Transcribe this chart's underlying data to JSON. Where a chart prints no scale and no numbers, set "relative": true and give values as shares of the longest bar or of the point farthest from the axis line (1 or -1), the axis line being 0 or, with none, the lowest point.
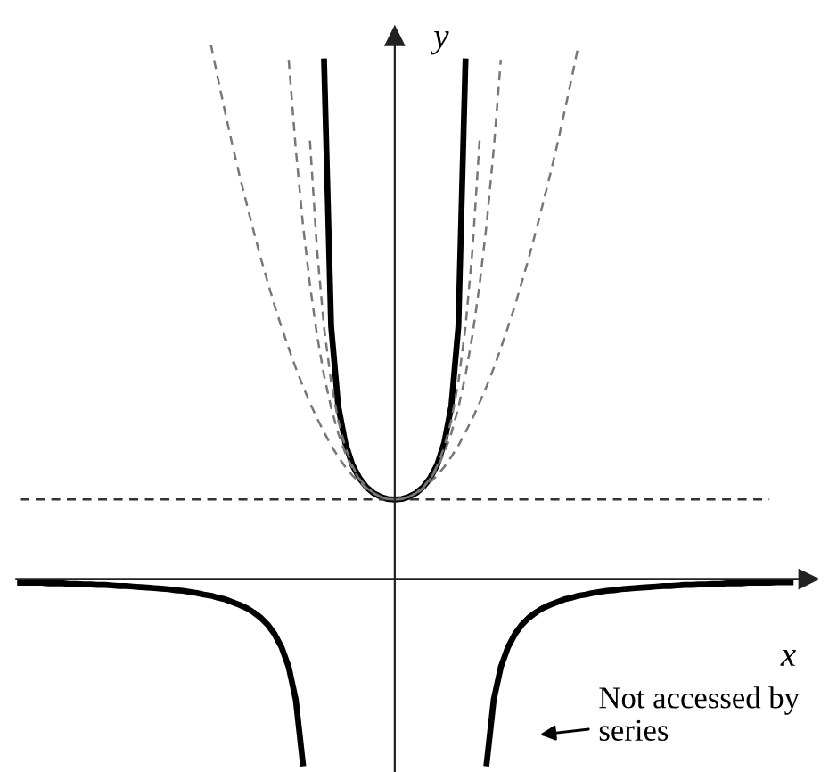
{
  "chart_data": {
    "type": "line",
    "relative": true,
    "xlabel": "x",
    "ylabel": "y",
    "legend": false,
    "annotations": [
      "Not accessed by series"
    ],
    "categories": [
      null,
      null,
      null,
      null,
      null,
      null,
      null,
      null,
      null,
      null,
      null,
      null,
      null,
      null,
      null,
      null,
      null,
      null,
      null,
      null,
      null,
      null,
      null,
      null,
      null,
      null,
      null,
      null,
      null,
      null,
      null,
      null,
      null,
      null,
      null,
      null,
      null,
      null,
      null,
      null,
      null,
      null,
      null,
      null,
      null,
      null,
      null,
      null,
      null,
      null,
      null,
      null,
      null,
      null,
      null,
      null,
      null,
      null,
      null,
      null,
      null,
      null,
      null,
      null,
      null,
      null,
      null,
      null,
      null,
      null,
      null,
      null,
      null,
      null,
      null,
      null,
      null,
      null,
      null,
      null,
      null,
      null,
      null,
      null,
      null,
      null,
      null,
      null,
      null,
      null,
      null,
      null,
      null,
      null,
      null,
      null,
      null,
      null,
      null,
      null,
      null,
      null,
      null,
      null,
      null,
      null,
      null,
      null,
      null,
      null
    ],
    "series": [
      {
        "color": "#000000",
        "line_style": "solid",
        "values": [
          -0.007,
          -0.007,
          -0.007,
          -0.007,
          -0.008,
          -0.008,
          -0.008,
          -0.009,
          -0.009,
          -0.01,
          -0.01,
          -0.011,
          -0.011,
          -0.012,
          -0.013,
          -0.013,
          -0.014,
          -0.015,
          -0.016,
          -0.017,
          -0.018,
          -0.019,
          -0.021,
          -0.022,
          -0.024,
          -0.026,
          -0.029,
          -0.031,
          -0.035,
          -0.038,
          -0.043,
          -0.048,
          -0.054,
          -0.062,
          -0.072,
          -0.085,
          -0.103,
          -0.128,
          -0.165,
          -0.226,
          -0.345,
          null,
          null,
          0.969,
          0.473,
          0.324,
          0.255,
          0.214,
          0.189,
          0.172,
          0.161,
          0.154,
          0.15,
          0.149,
          0.15,
          0.154,
          0.161,
          0.172,
          0.189,
          0.214,
          0.255,
          0.324,
          0.473,
          0.969,
          null,
          null,
          -0.345,
          -0.226,
          -0.165,
          -0.128,
          -0.103,
          -0.085,
          -0.072,
          -0.062,
          -0.054,
          -0.048,
          -0.043,
          -0.038,
          -0.035,
          -0.031,
          -0.029,
          -0.026,
          -0.024,
          -0.022,
          -0.021,
          -0.019,
          -0.018,
          -0.017,
          -0.016,
          -0.015,
          -0.014,
          -0.013,
          -0.013,
          -0.012,
          -0.011,
          -0.011,
          -0.01,
          -0.01,
          -0.009,
          -0.009,
          -0.008,
          -0.008,
          -0.008,
          -0.007,
          -0.007,
          -0.007,
          -0.007,
          -0.006,
          -0.006,
          -0.006
        ]
      },
      {
        "color": "#333333",
        "line_style": "dashed",
        "values": [
          0.149,
          0.149,
          0.149,
          0.149,
          0.149,
          0.149,
          0.149,
          0.149,
          0.149,
          0.149,
          0.149,
          0.149,
          0.149,
          0.149,
          0.149,
          0.149,
          0.149,
          0.149,
          0.149,
          0.149,
          0.149,
          0.149,
          0.149,
          0.149,
          0.149,
          0.149,
          0.149,
          0.149,
          0.149,
          0.149,
          0.149,
          0.149,
          0.149,
          0.149,
          0.149,
          0.149,
          0.149,
          0.149,
          0.149,
          0.149,
          0.149,
          0.149,
          0.149,
          0.149,
          0.149,
          0.149,
          0.149,
          0.149,
          0.149,
          0.149,
          0.149,
          0.149,
          0.149,
          0.149,
          0.149,
          0.149,
          0.149,
          0.149,
          0.149,
          0.149,
          0.149,
          0.149,
          0.149,
          0.149,
          0.149,
          0.149,
          0.149,
          0.149,
          0.149,
          0.149,
          0.149,
          0.149,
          0.149,
          0.149,
          0.149,
          0.149,
          0.149,
          0.149,
          0.149,
          0.149,
          0.149,
          0.149,
          0.149,
          0.149,
          0.149,
          0.149,
          0.149,
          0.149,
          0.149,
          0.149,
          0.149,
          0.149,
          0.149,
          0.149,
          0.149,
          0.149,
          0.149,
          0.149,
          0.149,
          0.149,
          0.149,
          0.149,
          0.149,
          0.149,
          0.149,
          0.149,
          0.149,
          null,
          null,
          null
        ]
      },
      {
        "color": "#777777",
        "line_style": "dashed",
        "values": [
          null,
          null,
          null,
          null,
          null,
          null,
          null,
          null,
          null,
          null,
          null,
          null,
          null,
          null,
          null,
          null,
          null,
          null,
          null,
          null,
          null,
          null,
          null,
          null,
          null,
          null,
          null,
          1,
          0.936,
          0.874,
          0.814,
          0.758,
          0.705,
          0.653,
          0.603,
          0.557,
          0.512,
          0.471,
          0.432,
          0.395,
          0.361,
          0.33,
          0.301,
          0.275,
          0.25,
          0.229,
          0.21,
          0.194,
          0.181,
          0.169,
          0.161,
          0.154,
          0.15,
          0.149,
          0.15,
          0.154,
          0.161,
          0.169,
          0.181,
          0.194,
          0.21,
          0.229,
          0.25,
          0.275,
          0.301,
          0.33,
          0.361,
          0.395,
          0.432,
          0.471,
          0.512,
          0.557,
          0.603,
          0.653,
          0.705,
          0.758,
          0.814,
          0.874,
          0.936,
          1,
          null,
          null,
          null,
          null,
          null,
          null,
          null,
          null,
          null,
          null,
          null,
          null,
          null,
          null,
          null,
          null,
          null,
          null,
          null,
          null,
          null,
          null,
          null,
          null,
          null,
          null,
          null,
          null,
          null,
          null
        ]
      },
      {
        "color": "#777777",
        "line_style": "dashed",
        "values": [
          null,
          null,
          null,
          null,
          null,
          null,
          null,
          null,
          null,
          null,
          null,
          null,
          null,
          null,
          null,
          null,
          null,
          null,
          null,
          null,
          null,
          null,
          null,
          null,
          null,
          null,
          null,
          null,
          null,
          null,
          null,
          null,
          null,
          null,
          null,
          null,
          null,
          null,
          0.972,
          0.805,
          0.665,
          0.551,
          0.457,
          0.381,
          0.321,
          0.273,
          0.236,
          0.208,
          0.187,
          0.171,
          0.161,
          0.154,
          0.15,
          0.149,
          0.15,
          0.154,
          0.161,
          0.171,
          0.187,
          0.208,
          0.236,
          0.273,
          0.321,
          0.381,
          0.457,
          0.551,
          0.665,
          0.805,
          0.972,
          null,
          null,
          null,
          null,
          null,
          null,
          null,
          null,
          null,
          null,
          null,
          null,
          null,
          null,
          null,
          null,
          null,
          null,
          null,
          null,
          null,
          null,
          null,
          null,
          null,
          null,
          null,
          null,
          null,
          null,
          null,
          null,
          null,
          null,
          null,
          null,
          null,
          null,
          null,
          null,
          null
        ]
      },
      {
        "color": "#777777",
        "line_style": "dashed",
        "values": [
          null,
          null,
          null,
          null,
          null,
          null,
          null,
          null,
          null,
          null,
          null,
          null,
          null,
          null,
          null,
          null,
          null,
          null,
          null,
          null,
          null,
          null,
          null,
          null,
          null,
          null,
          null,
          null,
          null,
          null,
          null,
          null,
          null,
          null,
          null,
          null,
          null,
          null,
          null,
          null,
          null,
          0.821,
          0.617,
          0.471,
          0.369,
          0.297,
          0.247,
          0.212,
          0.188,
          0.172,
          0.161,
          0.154,
          0.15,
          0.149,
          0.15,
          0.154,
          0.161,
          0.172,
          0.188,
          0.212,
          0.247,
          0.297,
          0.369,
          0.471,
          0.617,
          0.821,
          null,
          null,
          null,
          null,
          null,
          null,
          null,
          null,
          null,
          null,
          null,
          null,
          null,
          null,
          null,
          null,
          null,
          null,
          null,
          null,
          null,
          null,
          null,
          null,
          null,
          null,
          null,
          null,
          null,
          null,
          null,
          null,
          null,
          null,
          null,
          null,
          null,
          null,
          null,
          null,
          null,
          null,
          null,
          null
        ]
      }
    ]
  }
}
